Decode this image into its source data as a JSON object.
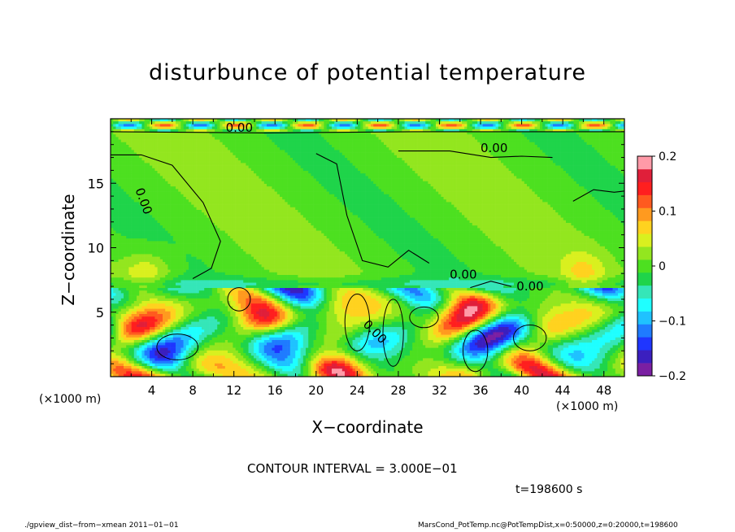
{
  "chart_data": {
    "type": "heatmap",
    "title": "disturbunce of potential temperature",
    "xlabel": "X−coordinate",
    "ylabel": "Z−coordinate",
    "x_unit_left": "(×1000 m)",
    "x_unit_right": "(×1000 m)",
    "xlim": [
      0,
      50
    ],
    "ylim": [
      0,
      20
    ],
    "x_ticks": [
      4,
      8,
      12,
      16,
      20,
      24,
      28,
      32,
      36,
      40,
      44,
      48
    ],
    "y_ticks": [
      5,
      10,
      15
    ],
    "colorbar": {
      "range": [
        -0.2,
        0.2
      ],
      "tick_values": [
        0.2,
        0.1,
        0,
        -0.1,
        -0.2
      ],
      "tick_labels": [
        "0.2",
        "0.1",
        "0",
        "−0.1",
        "−0.2"
      ],
      "colors": [
        "#7a1fa2",
        "#3b1fbf",
        "#1f36ff",
        "#1f7bff",
        "#1fc2ff",
        "#1fffff",
        "#35e6b8",
        "#1fd44a",
        "#4de020",
        "#93e61f",
        "#d9f01f",
        "#ffd21f",
        "#ff9a1f",
        "#ff5a1f",
        "#ff1f1f",
        "#e01f3a",
        "#ff9aa8"
      ]
    },
    "contour_interval": "CONTOUR INTERVAL = 3.000E−01",
    "contour_labels": [
      "0.00",
      "0.00",
      "0.00",
      "0.00",
      "0.00",
      "0.00"
    ],
    "time": "t=198600  s",
    "footer_left": "./gpview_dist−from−xmean   2011−01−01",
    "footer_right": "MarsCond_PotTemp.nc@PotTempDist,x=0:50000,z=0:20000,t=198600"
  }
}
